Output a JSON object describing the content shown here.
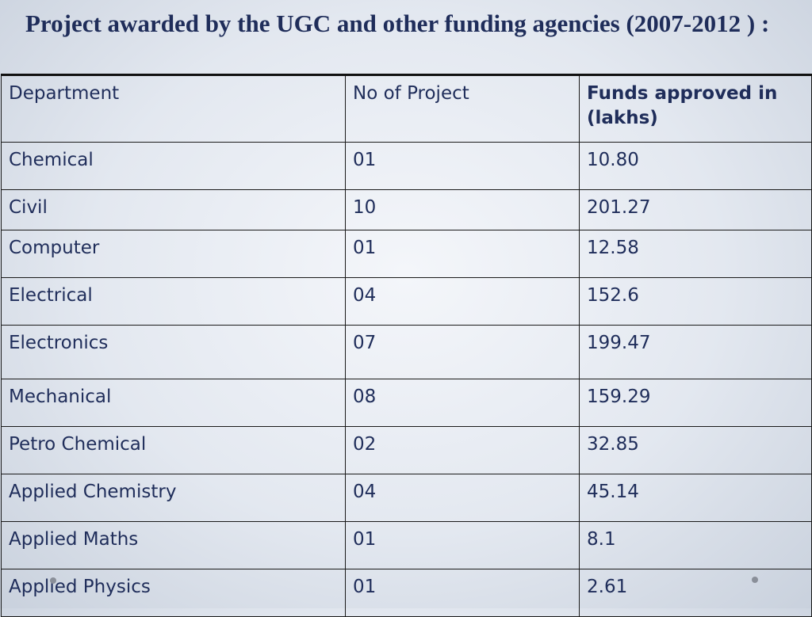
{
  "title": "Project awarded by the UGC and other funding agencies (2007-2012 ) :",
  "table": {
    "headers": [
      "Department",
      "No of Project",
      "Funds approved in (lakhs)"
    ],
    "rows": [
      [
        "Chemical",
        "01",
        "10.80"
      ],
      [
        "Civil",
        "10",
        "201.27"
      ],
      [
        "Computer",
        "01",
        "12.58"
      ],
      [
        "Electrical",
        "04",
        "152.6"
      ],
      [
        "Electronics",
        "07",
        "199.47"
      ],
      [
        "Mechanical",
        "08",
        "159.29"
      ],
      [
        "Petro Chemical",
        "02",
        "32.85"
      ],
      [
        "Applied Chemistry",
        "04",
        "45.14"
      ],
      [
        "Applied Maths",
        "01",
        "8.1"
      ],
      [
        "Applied Physics",
        "01",
        "2.61"
      ]
    ]
  }
}
